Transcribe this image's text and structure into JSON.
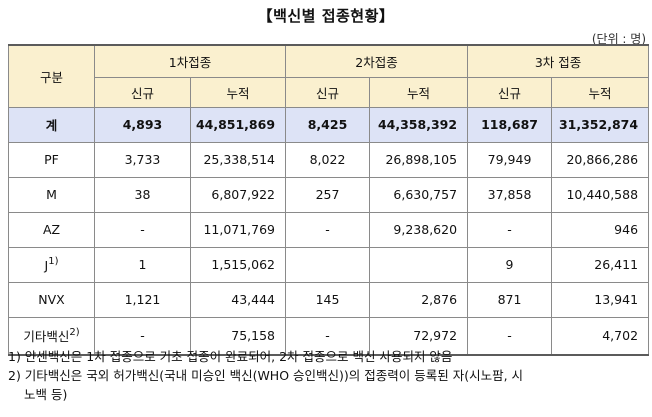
{
  "title": "【백신별 접종현황】",
  "unit": "(단위 : 명)",
  "header": {
    "group_label": "구분",
    "doses": [
      "1차접종",
      "2차접종",
      "3차 접종"
    ],
    "sub": [
      "신규",
      "누적",
      "신규",
      "누적",
      "신규",
      "누적"
    ]
  },
  "rows": [
    {
      "label": "계",
      "sup": "",
      "values": [
        "4,893",
        "44,851,869",
        "8,425",
        "44,358,392",
        "118,687",
        "31,352,874"
      ]
    },
    {
      "label": "PF",
      "sup": "",
      "values": [
        "3,733",
        "25,338,514",
        "8,022",
        "26,898,105",
        "79,949",
        "20,866,286"
      ]
    },
    {
      "label": "M",
      "sup": "",
      "values": [
        "38",
        "6,807,922",
        "257",
        "6,630,757",
        "37,858",
        "10,440,588"
      ]
    },
    {
      "label": "AZ",
      "sup": "",
      "values": [
        "-",
        "11,071,769",
        "-",
        "9,238,620",
        "-",
        "946"
      ]
    },
    {
      "label": "J",
      "sup": "1)",
      "values": [
        "1",
        "1,515,062",
        "",
        "",
        "9",
        "26,411"
      ]
    },
    {
      "label": "NVX",
      "sup": "",
      "values": [
        "1,121",
        "43,444",
        "145",
        "2,876",
        "871",
        "13,941"
      ]
    },
    {
      "label": "기타백신",
      "sup": "2)",
      "values": [
        "-",
        "75,158",
        "-",
        "72,972",
        "-",
        "4,702"
      ]
    }
  ],
  "notes": [
    "1) 얀센백신은 1차 접종으로 기초 접종이 완료되어, 2차 접종으로 백신 사용되지 않음",
    "2) 기타백신은 국외 허가백신(국내 미승인 백신(WHO 승인백신))의 접종력이 등록된 자(시노팜, 시",
    "노백 등)"
  ]
}
